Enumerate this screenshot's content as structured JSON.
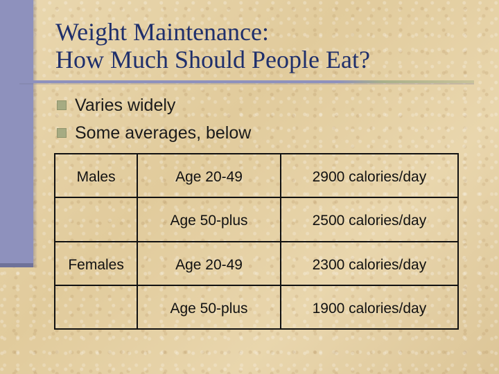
{
  "slide": {
    "title_lines": [
      "Weight Maintenance:",
      "How Much Should People Eat?"
    ],
    "bullets": [
      "Varies widely",
      "Some averages, below"
    ],
    "colors": {
      "title": "#1f2f6b",
      "accent_bar": "#8e91bd",
      "bullet": "#a6ab82"
    }
  },
  "table": {
    "rows": [
      {
        "sex": "Males",
        "age": "Age 20-49",
        "calories": "2900 calories/day"
      },
      {
        "sex": "",
        "age": "Age 50-plus",
        "calories": "2500 calories/day"
      },
      {
        "sex": "Females",
        "age": "Age 20-49",
        "calories": "2300 calories/day"
      },
      {
        "sex": "",
        "age": "Age 50-plus",
        "calories": "1900 calories/day"
      }
    ]
  }
}
